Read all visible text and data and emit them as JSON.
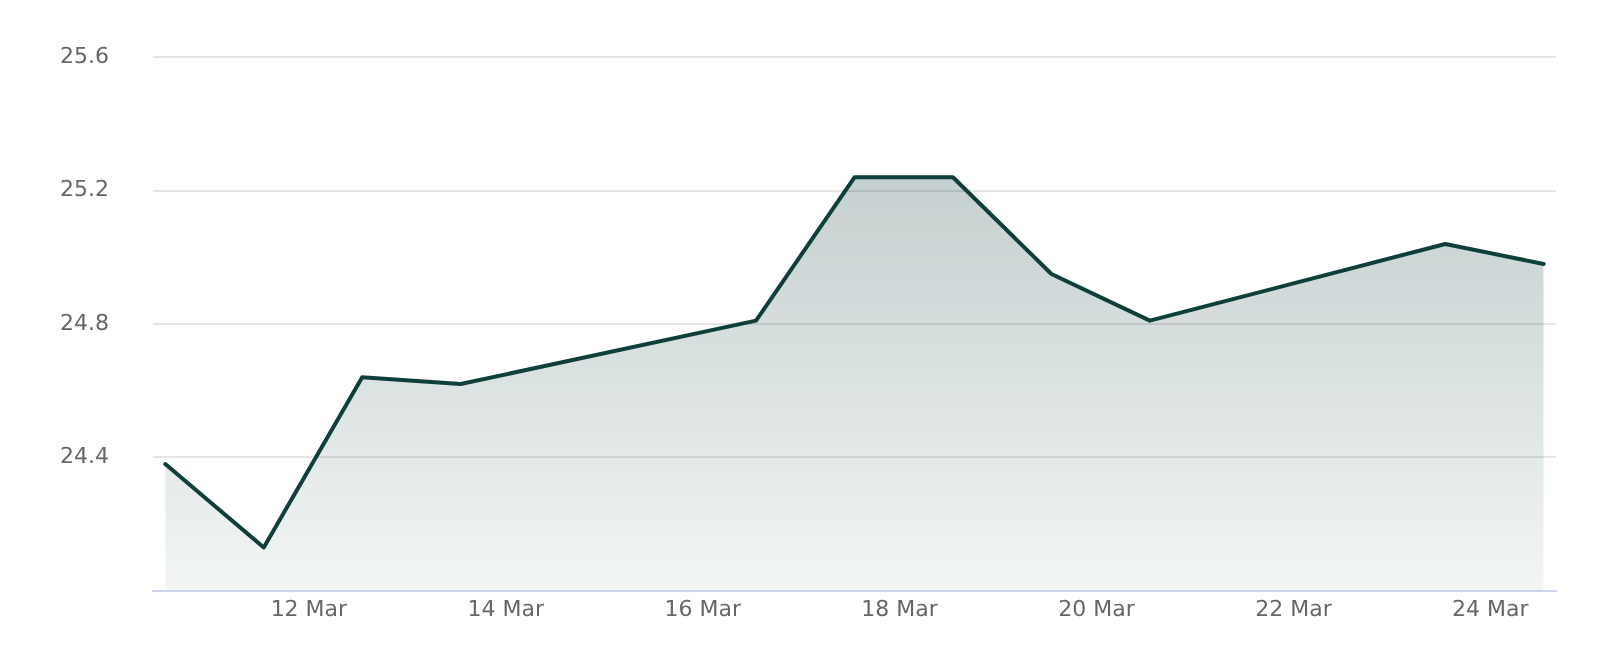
{
  "chart_data": {
    "type": "area",
    "x": [
      "--03-10T13:00",
      "--03-11T13:00",
      "--03-12T13:00",
      "--03-13T13:00",
      "--03-16T13:00",
      "--03-17T13:00",
      "--03-18T13:00",
      "--03-19T13:00",
      "--03-20T13:00",
      "--03-23T13:00",
      "--03-24T13:00"
    ],
    "series": [
      {
        "color": "#0f3f3b",
        "values": [
          24.38,
          24.13,
          24.64,
          24.62,
          24.81,
          25.24,
          25.24,
          24.95,
          24.81,
          25.04,
          24.98
        ]
      }
    ],
    "xlim": [
      "--03-10T10:00",
      "--03-24T16:00"
    ],
    "xticks": [
      {
        "value": "--03-12",
        "label": "12 Mar"
      },
      {
        "value": "--03-14",
        "label": "14 Mar"
      },
      {
        "value": "--03-16",
        "label": "16 Mar"
      },
      {
        "value": "--03-18",
        "label": "18 Mar"
      },
      {
        "value": "--03-20",
        "label": "20 Mar"
      },
      {
        "value": "--03-22",
        "label": "22 Mar"
      },
      {
        "value": "--03-24",
        "label": "24 Mar"
      }
    ],
    "ylim": [
      24.0,
      25.6
    ],
    "yticks": [
      24.4,
      24.8,
      25.2,
      25.6
    ],
    "grid": "y",
    "legend": false,
    "marker": "none",
    "line_style": "solid"
  }
}
